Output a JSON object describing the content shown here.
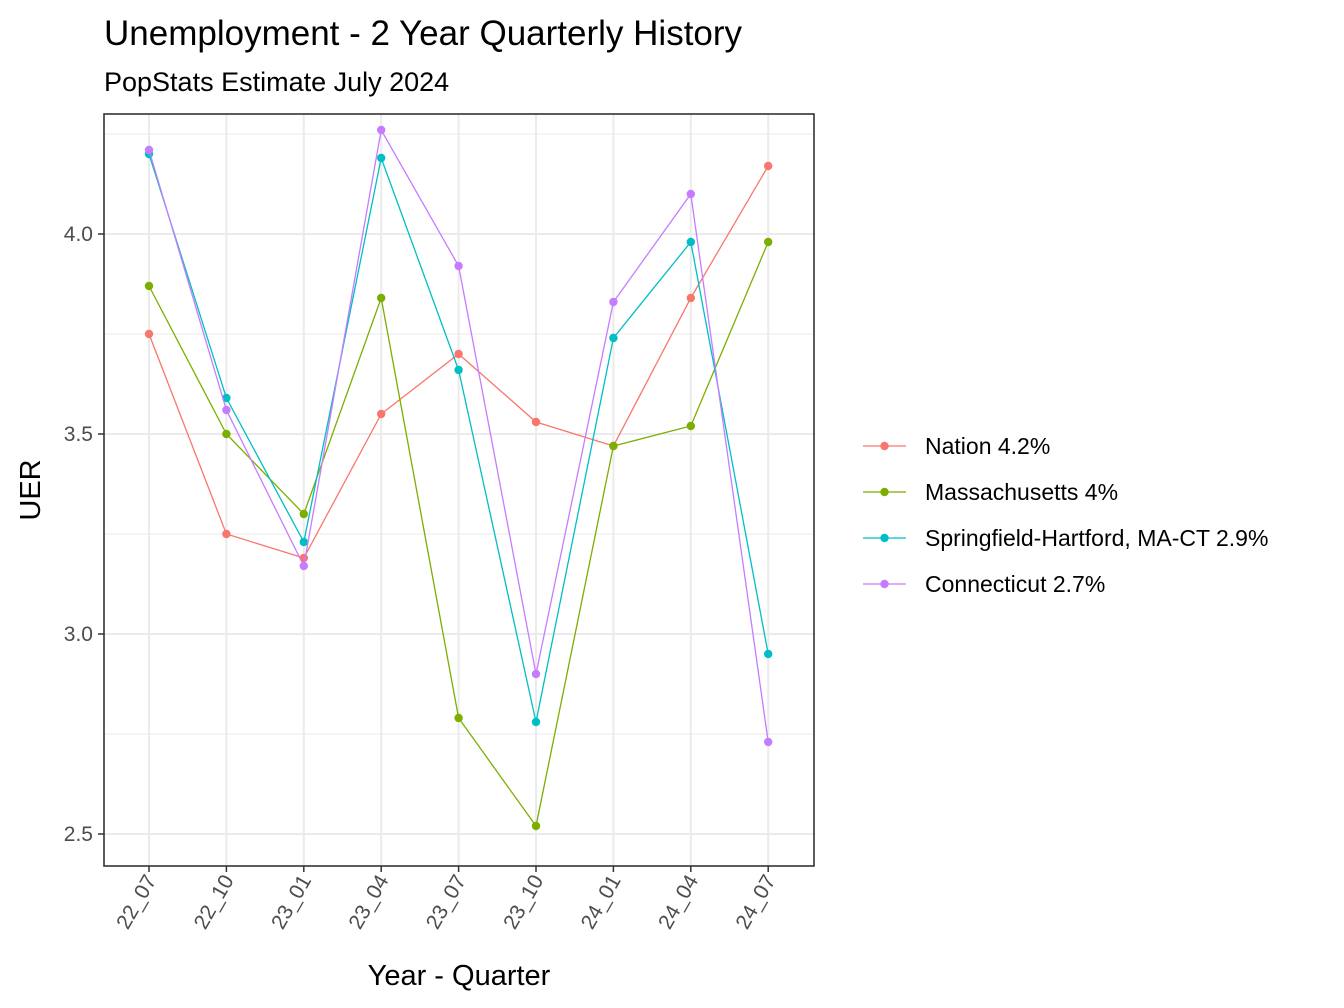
{
  "chart_data": {
    "type": "line",
    "title": "Unemployment - 2 Year Quarterly History",
    "subtitle": "PopStats Estimate July 2024",
    "xlabel": "Year - Quarter",
    "ylabel": "UER",
    "categories": [
      "22_07",
      "22_10",
      "23_01",
      "23_04",
      "23_07",
      "23_10",
      "24_01",
      "24_04",
      "24_07"
    ],
    "ylim": [
      2.42,
      4.3
    ],
    "yticks": [
      "2.5",
      "3.0",
      "3.5",
      "4.0"
    ],
    "grid": true,
    "legend_position": "right",
    "series": [
      {
        "name": "Nation 4.2%",
        "color": "#F8766D",
        "values": [
          3.75,
          3.25,
          3.19,
          3.55,
          3.7,
          3.53,
          3.47,
          3.84,
          4.17
        ]
      },
      {
        "name": "Massachusetts 4%",
        "color": "#7CAE00",
        "values": [
          3.87,
          3.5,
          3.3,
          3.84,
          2.79,
          2.52,
          3.47,
          3.52,
          3.98
        ]
      },
      {
        "name": "Springfield-Hartford, MA-CT 2.9%",
        "color": "#00BFC4",
        "values": [
          4.2,
          3.59,
          3.23,
          4.19,
          3.66,
          2.78,
          3.74,
          3.98,
          2.95
        ]
      },
      {
        "name": "Connecticut 2.7%",
        "color": "#C77CFF",
        "values": [
          4.21,
          3.56,
          3.17,
          4.26,
          3.92,
          2.9,
          3.83,
          4.1,
          2.73
        ]
      }
    ]
  }
}
